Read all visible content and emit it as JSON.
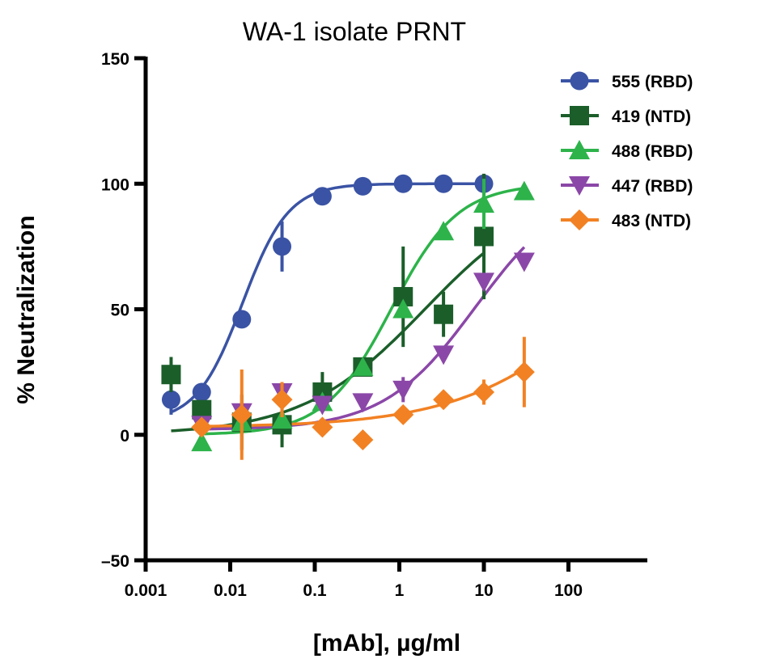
{
  "chart_data": {
    "type": "scatter",
    "title": "WA-1 isolate PRNT",
    "xlabel": "[mAb], µg/ml",
    "ylabel": "% Neutralization",
    "xscale": "log",
    "xlim": [
      0.001,
      100
    ],
    "ylim": [
      -50,
      150
    ],
    "xticks": [
      "0.001",
      "0.01",
      "0.1",
      "1",
      "10",
      "100"
    ],
    "xtick_values": [
      0.001,
      0.01,
      0.1,
      1,
      10,
      100
    ],
    "yticks": [
      "–50",
      "0",
      "50",
      "100",
      "150"
    ],
    "ytick_values": [
      -50,
      0,
      50,
      100,
      150
    ],
    "grid": false,
    "legend_position": "top-right",
    "series": [
      {
        "name": "555 (RBD)",
        "color": "#3a53a4",
        "marker": "circle",
        "x": [
          0.002,
          0.0046,
          0.0137,
          0.041,
          0.123,
          0.37,
          1.11,
          3.33,
          10
        ],
        "y": [
          14,
          17,
          46,
          75,
          95,
          99,
          100,
          100,
          100
        ],
        "err": [
          6,
          0,
          0,
          10,
          0,
          0,
          0,
          0,
          0
        ],
        "fit": {
          "bottom": 5,
          "top": 100,
          "ec50": 0.014,
          "hill": 1.6,
          "range": [
            0.002,
            10
          ]
        }
      },
      {
        "name": "419 (NTD)",
        "color": "#1b5e2a",
        "marker": "square",
        "x": [
          0.002,
          0.0046,
          0.0137,
          0.041,
          0.123,
          0.37,
          1.11,
          3.33,
          10
        ],
        "y": [
          24,
          10,
          5,
          4,
          17,
          27,
          55,
          48,
          79
        ],
        "err": [
          7,
          0,
          11,
          9,
          8,
          0,
          20,
          9,
          25
        ],
        "fit": {
          "bottom": 0,
          "top": 100,
          "ec50": 2,
          "hill": 0.6,
          "range": [
            0.002,
            10
          ]
        }
      },
      {
        "name": "488 (RBD)",
        "color": "#2db34a",
        "marker": "triangle-up",
        "x": [
          0.0046,
          0.0137,
          0.041,
          0.123,
          0.37,
          1.11,
          3.33,
          10,
          30
        ],
        "y": [
          -3,
          5,
          6,
          13,
          27,
          50,
          81,
          92,
          97
        ],
        "err": [
          0,
          0,
          0,
          0,
          0,
          0,
          0,
          10,
          0
        ],
        "fit": {
          "bottom": 0,
          "top": 100,
          "ec50": 0.8,
          "hill": 1.1,
          "range": [
            0.0046,
            30
          ]
        }
      },
      {
        "name": "447 (RBD)",
        "color": "#8b47a8",
        "marker": "triangle-down",
        "x": [
          0.0046,
          0.0137,
          0.041,
          0.123,
          0.37,
          1.11,
          3.33,
          10,
          30
        ],
        "y": [
          4,
          9,
          17,
          12,
          13,
          18,
          32,
          61,
          69
        ],
        "err": [
          0,
          0,
          0,
          0,
          0,
          5,
          0,
          0,
          0
        ],
        "fit": {
          "bottom": 2,
          "top": 100,
          "ec50": 8,
          "hill": 0.8,
          "range": [
            0.0046,
            30
          ]
        }
      },
      {
        "name": "483 (NTD)",
        "color": "#f28123",
        "marker": "diamond",
        "x": [
          0.0046,
          0.0137,
          0.041,
          0.123,
          0.37,
          1.11,
          3.33,
          10,
          30
        ],
        "y": [
          3,
          8,
          14,
          3,
          -2,
          8,
          14,
          17,
          25
        ],
        "err": [
          0,
          18,
          7,
          0,
          0,
          0,
          0,
          5,
          14
        ],
        "fit": {
          "bottom": 3,
          "top": 100,
          "ec50": 300,
          "hill": 0.5,
          "range": [
            0.0046,
            30
          ]
        }
      }
    ]
  }
}
